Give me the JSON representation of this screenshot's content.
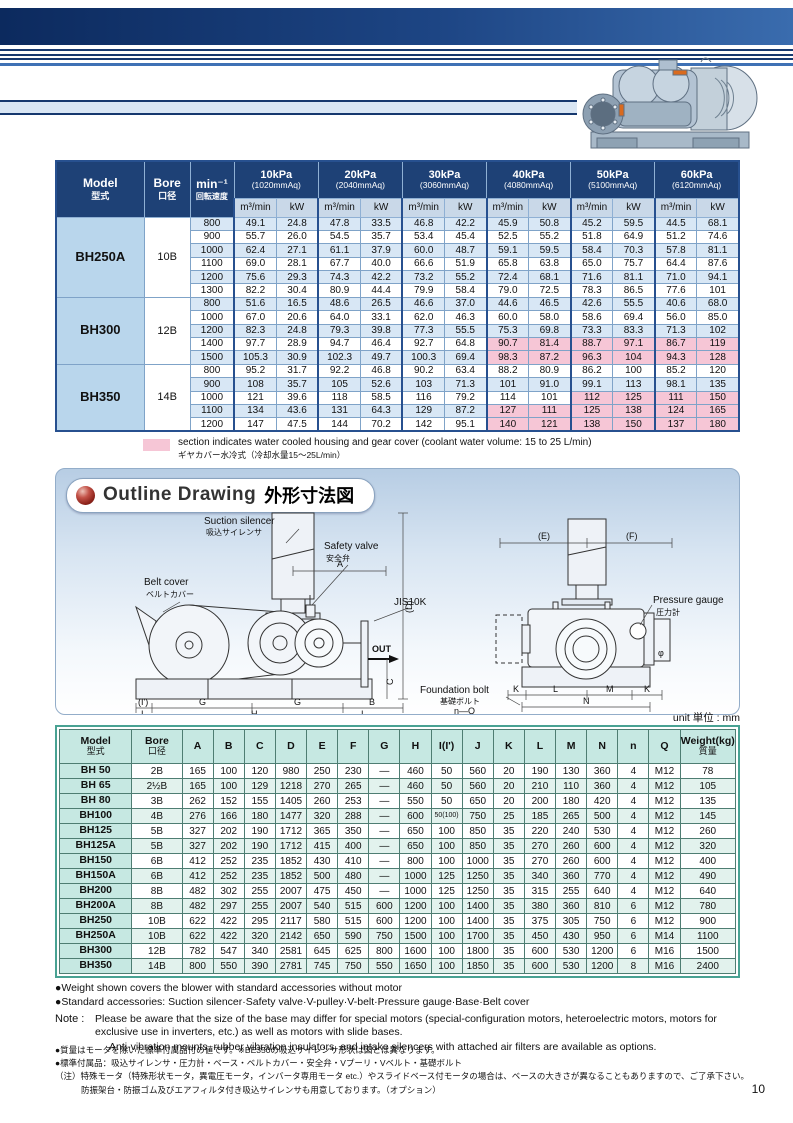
{
  "page": {
    "number": "10"
  },
  "colors": {
    "header_navy": "#1e4176",
    "row_blue": "#d8e7f5",
    "water_cooled_pink": "#f6c6d6",
    "dim_header_teal": "#c6e8e2",
    "dim_row_teal": "#e2f2ed"
  },
  "performance_table": {
    "header": {
      "model_en": "Model",
      "model_jp": "型式",
      "bore_en": "Bore",
      "bore_jp": "口径",
      "speed_en": "min⁻¹",
      "speed_jp": "回転速度",
      "flow_label": "m³/min",
      "power_label": "kW",
      "pressure_groups": [
        {
          "kpa": "10kPa",
          "mmaq": "(1020mmAq)"
        },
        {
          "kpa": "20kPa",
          "mmaq": "(2040mmAq)"
        },
        {
          "kpa": "30kPa",
          "mmaq": "(3060mmAq)"
        },
        {
          "kpa": "40kPa",
          "mmaq": "(4080mmAq)"
        },
        {
          "kpa": "50kPa",
          "mmaq": "(5100mmAq)"
        },
        {
          "kpa": "60kPa",
          "mmaq": "(6120mmAq)"
        }
      ]
    },
    "groups": [
      {
        "model": "BH250A",
        "bore": "10B",
        "rows": [
          {
            "speed": "800",
            "values": [
              "49.1",
              "24.8",
              "47.8",
              "33.5",
              "46.8",
              "42.2",
              "45.9",
              "50.8",
              "45.2",
              "59.5",
              "44.5",
              "68.1"
            ],
            "pink_from": null
          },
          {
            "speed": "900",
            "values": [
              "55.7",
              "26.0",
              "54.5",
              "35.7",
              "53.4",
              "45.4",
              "52.5",
              "55.2",
              "51.8",
              "64.9",
              "51.2",
              "74.6"
            ],
            "pink_from": null
          },
          {
            "speed": "1000",
            "values": [
              "62.4",
              "27.1",
              "61.1",
              "37.9",
              "60.0",
              "48.7",
              "59.1",
              "59.5",
              "58.4",
              "70.3",
              "57.8",
              "81.1"
            ],
            "pink_from": null
          },
          {
            "speed": "1100",
            "values": [
              "69.0",
              "28.1",
              "67.7",
              "40.0",
              "66.6",
              "51.9",
              "65.8",
              "63.8",
              "65.0",
              "75.7",
              "64.4",
              "87.6"
            ],
            "pink_from": null
          },
          {
            "speed": "1200",
            "values": [
              "75.6",
              "29.3",
              "74.3",
              "42.2",
              "73.2",
              "55.2",
              "72.4",
              "68.1",
              "71.6",
              "81.1",
              "71.0",
              "94.1"
            ],
            "pink_from": null
          },
          {
            "speed": "1300",
            "values": [
              "82.2",
              "30.4",
              "80.9",
              "44.4",
              "79.9",
              "58.4",
              "79.0",
              "72.5",
              "78.3",
              "86.5",
              "77.6",
              "101"
            ],
            "pink_from": null
          }
        ]
      },
      {
        "model": "BH300",
        "bore": "12B",
        "rows": [
          {
            "speed": "800",
            "values": [
              "51.6",
              "16.5",
              "48.6",
              "26.5",
              "46.6",
              "37.0",
              "44.6",
              "46.5",
              "42.6",
              "55.5",
              "40.6",
              "68.0"
            ],
            "pink_from": null
          },
          {
            "speed": "1000",
            "values": [
              "67.0",
              "20.6",
              "64.0",
              "33.1",
              "62.0",
              "46.3",
              "60.0",
              "58.0",
              "58.6",
              "69.4",
              "56.0",
              "85.0"
            ],
            "pink_from": null
          },
          {
            "speed": "1200",
            "values": [
              "82.3",
              "24.8",
              "79.3",
              "39.8",
              "77.3",
              "55.5",
              "75.3",
              "69.8",
              "73.3",
              "83.3",
              "71.3",
              "102"
            ],
            "pink_from": null
          },
          {
            "speed": "1400",
            "values": [
              "97.7",
              "28.9",
              "94.7",
              "46.4",
              "92.7",
              "64.8",
              "90.7",
              "81.4",
              "88.7",
              "97.1",
              "86.7",
              "119"
            ],
            "pink_from": 6
          },
          {
            "speed": "1500",
            "values": [
              "105.3",
              "30.9",
              "102.3",
              "49.7",
              "100.3",
              "69.4",
              "98.3",
              "87.2",
              "96.3",
              "104",
              "94.3",
              "128"
            ],
            "pink_from": 6
          }
        ]
      },
      {
        "model": "BH350",
        "bore": "14B",
        "rows": [
          {
            "speed": "800",
            "values": [
              "95.2",
              "31.7",
              "92.2",
              "46.8",
              "90.2",
              "63.4",
              "88.2",
              "80.9",
              "86.2",
              "100",
              "85.2",
              "120"
            ],
            "pink_from": null
          },
          {
            "speed": "900",
            "values": [
              "108",
              "35.7",
              "105",
              "52.6",
              "103",
              "71.3",
              "101",
              "91.0",
              "99.1",
              "113",
              "98.1",
              "135"
            ],
            "pink_from": null
          },
          {
            "speed": "1000",
            "values": [
              "121",
              "39.6",
              "118",
              "58.5",
              "116",
              "79.2",
              "114",
              "101",
              "112",
              "125",
              "111",
              "150"
            ],
            "pink_from": 8
          },
          {
            "speed": "1100",
            "values": [
              "134",
              "43.6",
              "131",
              "64.3",
              "129",
              "87.2",
              "127",
              "111",
              "125",
              "138",
              "124",
              "165"
            ],
            "pink_from": 6
          },
          {
            "speed": "1200",
            "values": [
              "147",
              "47.5",
              "144",
              "70.2",
              "142",
              "95.1",
              "140",
              "121",
              "138",
              "150",
              "137",
              "180"
            ],
            "pink_from": 6
          }
        ]
      }
    ],
    "legend_en": "section indicates water cooled housing and gear cover (coolant water volume: 15 to 25 L/min)",
    "legend_jp": "ギヤカバー水冷式（冷却水量15～25L/min）"
  },
  "outline": {
    "title_en": "Outline Drawing",
    "title_jp": "外形寸法図",
    "labels": {
      "suction_silencer_en": "Suction silencer",
      "suction_silencer_jp": "吸込サイレンサ",
      "safety_valve_en": "Safety valve",
      "safety_valve_jp": "安全弁",
      "belt_cover_en": "Belt cover",
      "belt_cover_jp": "ベルトカバー",
      "pressure_gauge_en": "Pressure gauge",
      "pressure_gauge_jp": "圧力計",
      "foundation_bolt_en": "Foundation bolt",
      "foundation_bolt_jp": "基礎ボルト",
      "foundation_bolt_qty": "n—Q",
      "jis_flange": "JIS10K",
      "out": "OUT",
      "phi": "φ",
      "dim_a": "A",
      "dim_b": "B",
      "dim_c": "C",
      "dim_d": "(D)",
      "dim_e": "(E)",
      "dim_f": "(F)",
      "dim_g": "G",
      "dim_h": "H",
      "dim_i": "I",
      "dim_i2": "(I')",
      "dim_j": "J",
      "dim_k": "K",
      "dim_l": "L",
      "dim_m": "M",
      "dim_n": "N"
    }
  },
  "dimension_table": {
    "unit_label": "unit 単位 : mm",
    "header": {
      "model_en": "Model",
      "model_jp": "型式",
      "bore_en": "Bore",
      "bore_jp": "口径",
      "dims": [
        "A",
        "B",
        "C",
        "D",
        "E",
        "F",
        "G",
        "H",
        "I(I')",
        "J",
        "K",
        "L",
        "M",
        "N",
        "n",
        "Q"
      ],
      "weight_en": "Weight(kg)",
      "weight_jp": "質量"
    },
    "rows": [
      {
        "model": "BH 50",
        "bore": "2B",
        "values": [
          "165",
          "100",
          "120",
          "980",
          "250",
          "230",
          "—",
          "460",
          "50",
          "560",
          "20",
          "190",
          "130",
          "360",
          "4",
          "M12"
        ],
        "weight": "78"
      },
      {
        "model": "BH 65",
        "bore": "2½B",
        "values": [
          "165",
          "100",
          "129",
          "1218",
          "270",
          "265",
          "—",
          "460",
          "50",
          "560",
          "20",
          "210",
          "110",
          "360",
          "4",
          "M12"
        ],
        "weight": "105"
      },
      {
        "model": "BH 80",
        "bore": "3B",
        "values": [
          "262",
          "152",
          "155",
          "1405",
          "260",
          "253",
          "—",
          "550",
          "50",
          "650",
          "20",
          "200",
          "180",
          "420",
          "4",
          "M12"
        ],
        "weight": "135"
      },
      {
        "model": "BH100",
        "bore": "4B",
        "values": [
          "276",
          "166",
          "180",
          "1477",
          "320",
          "288",
          "—",
          "600",
          "50(100)",
          "750",
          "25",
          "185",
          "265",
          "500",
          "4",
          "M12"
        ],
        "weight": "145"
      },
      {
        "model": "BH125",
        "bore": "5B",
        "values": [
          "327",
          "202",
          "190",
          "1712",
          "365",
          "350",
          "—",
          "650",
          "100",
          "850",
          "35",
          "220",
          "240",
          "530",
          "4",
          "M12"
        ],
        "weight": "260"
      },
      {
        "model": "BH125A",
        "bore": "5B",
        "values": [
          "327",
          "202",
          "190",
          "1712",
          "415",
          "400",
          "—",
          "650",
          "100",
          "850",
          "35",
          "270",
          "260",
          "600",
          "4",
          "M12"
        ],
        "weight": "320"
      },
      {
        "model": "BH150",
        "bore": "6B",
        "values": [
          "412",
          "252",
          "235",
          "1852",
          "430",
          "410",
          "—",
          "800",
          "100",
          "1000",
          "35",
          "270",
          "260",
          "600",
          "4",
          "M12"
        ],
        "weight": "400"
      },
      {
        "model": "BH150A",
        "bore": "6B",
        "values": [
          "412",
          "252",
          "235",
          "1852",
          "500",
          "480",
          "—",
          "1000",
          "125",
          "1250",
          "35",
          "340",
          "360",
          "770",
          "4",
          "M12"
        ],
        "weight": "490"
      },
      {
        "model": "BH200",
        "bore": "8B",
        "values": [
          "482",
          "302",
          "255",
          "2007",
          "475",
          "450",
          "—",
          "1000",
          "125",
          "1250",
          "35",
          "315",
          "255",
          "640",
          "4",
          "M12"
        ],
        "weight": "640"
      },
      {
        "model": "BH200A",
        "bore": "8B",
        "values": [
          "482",
          "297",
          "255",
          "2007",
          "540",
          "515",
          "600",
          "1200",
          "100",
          "1400",
          "35",
          "380",
          "360",
          "810",
          "6",
          "M12"
        ],
        "weight": "780"
      },
      {
        "model": "BH250",
        "bore": "10B",
        "values": [
          "622",
          "422",
          "295",
          "2117",
          "580",
          "515",
          "600",
          "1200",
          "100",
          "1400",
          "35",
          "375",
          "305",
          "750",
          "6",
          "M12"
        ],
        "weight": "900"
      },
      {
        "model": "BH250A",
        "bore": "10B",
        "values": [
          "622",
          "422",
          "320",
          "2142",
          "650",
          "590",
          "750",
          "1500",
          "100",
          "1700",
          "35",
          "450",
          "430",
          "950",
          "6",
          "M14"
        ],
        "weight": "1100"
      },
      {
        "model": "BH300",
        "bore": "12B",
        "values": [
          "782",
          "547",
          "340",
          "2581",
          "645",
          "625",
          "800",
          "1600",
          "100",
          "1800",
          "35",
          "600",
          "530",
          "1200",
          "6",
          "M16"
        ],
        "weight": "1500"
      },
      {
        "model": "BH350",
        "bore": "14B",
        "values": [
          "800",
          "550",
          "390",
          "2781",
          "745",
          "750",
          "550",
          "1650",
          "100",
          "1850",
          "35",
          "600",
          "530",
          "1200",
          "8",
          "M16"
        ],
        "weight": "2400"
      }
    ]
  },
  "notes": {
    "bullet1": "●Weight shown covers the blower with standard accessories without motor",
    "bullet2": "●Standard accessories: Suction silencer·Safety valve·V-pulley·V-belt·Pressure gauge·Base·Belt cover",
    "note_label": "Note :",
    "note_p1": "Please be aware that the size of the base may differ for special motors (special-configuration motors, heteroelectric motors, motors for exclusive use in inverters, etc.) as well as motors with slide bases.",
    "note_p2": "Anti-vibration mounts, rubber vibration insulators, and intake silencers with attached air filters are available as options.",
    "jp1": "●質量はモータを除いた標準付属品付の値です。※BE350の吸込サイレンサ形状は図とは異なります。",
    "jp2": "●標準付属品：吸込サイレンサ・圧力計・ベース・ベルトカバー・安全弁・Vプーリ・Vベルト・基礎ボルト",
    "jp3": "（注）特殊モータ（特殊形状モータ，異電圧モータ，インバータ専用モータ etc.）やスライドベース付モータの場合は、ベースの大きさが異なることもありますので、ご了承下さい。",
    "jp4": "防振架台・防振ゴム及びエアフィルタ付き吸込サイレンサも用意しております。（オプション）"
  }
}
